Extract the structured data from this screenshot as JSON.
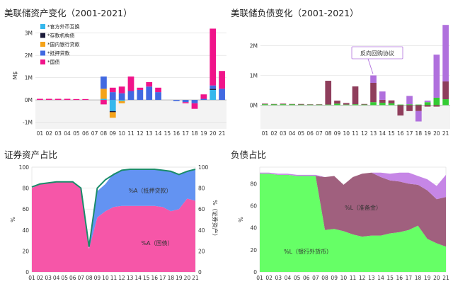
{
  "chart_data": [
    {
      "type": "bar",
      "stacked": true,
      "title": "美联储资产变化（2001-2021）",
      "ylabel": "M$",
      "ylim": [
        -1.3,
        3.5
      ],
      "yticks": [
        "3M",
        "2M",
        "1M",
        "0M",
        "-1M"
      ],
      "ytick_values": [
        3,
        2,
        1,
        0,
        -1
      ],
      "categories": [
        "01",
        "02",
        "03",
        "04",
        "05",
        "06",
        "07",
        "08",
        "09",
        "10",
        "11",
        "12",
        "13",
        "14",
        "15",
        "16",
        "17",
        "18",
        "19",
        "20",
        "21"
      ],
      "legend_position": "top-left",
      "series": [
        {
          "name": "*官方外币互换",
          "color": "#35b7ec",
          "values": [
            0,
            0,
            0,
            0,
            0,
            0,
            0,
            0.05,
            -0.5,
            -0.05,
            0,
            0,
            0,
            0,
            0,
            0,
            0,
            0,
            0,
            0.45,
            0
          ]
        },
        {
          "name": "*存款机构债",
          "color": "#1b1b3a",
          "values": [
            0,
            0,
            0,
            0,
            0,
            0,
            0,
            0,
            -0.05,
            0,
            0,
            0,
            0,
            0,
            0,
            0,
            0,
            0,
            0,
            0.05,
            0
          ]
        },
        {
          "name": "*国内银行贷款",
          "color": "#f5a31a",
          "values": [
            0,
            0,
            0,
            0,
            0,
            0,
            0,
            0.45,
            -0.25,
            -0.1,
            0,
            0,
            0,
            0,
            0,
            0,
            0,
            0,
            0,
            0,
            0
          ]
        },
        {
          "name": "*抵押贷款",
          "color": "#4169e1",
          "values": [
            0,
            0,
            0,
            0,
            0,
            0,
            0,
            0.55,
            0.35,
            0.3,
            0.4,
            0.45,
            0.6,
            0.35,
            0,
            -0.05,
            -0.1,
            -0.15,
            0.05,
            0.15,
            0.5
          ]
        },
        {
          "name": "*国债",
          "color": "#f0148a",
          "values": [
            0.05,
            0.05,
            0.05,
            0.05,
            0.04,
            0.04,
            0,
            -0.2,
            0.2,
            0.3,
            0.65,
            0.1,
            0.2,
            0.2,
            0,
            0,
            -0.05,
            -0.25,
            0.2,
            2.55,
            0.8
          ]
        }
      ]
    },
    {
      "type": "bar",
      "stacked": true,
      "title": "美联储负债变化（2001-2021）",
      "ylim": [
        -0.8,
        2.8
      ],
      "yticks": [
        "2M",
        "1M",
        "0M"
      ],
      "ytick_values": [
        2,
        1,
        0
      ],
      "categories": [
        "01",
        "02",
        "03",
        "04",
        "05",
        "06",
        "07",
        "08",
        "09",
        "10",
        "11",
        "12",
        "13",
        "14",
        "15",
        "16",
        "17",
        "18",
        "19",
        "20",
        "21"
      ],
      "annotation": "反向回购协议",
      "series": [
        {
          "name": "green",
          "color": "#33cc33",
          "values": [
            0.03,
            0.03,
            0.03,
            0.03,
            0.02,
            0.02,
            0.02,
            0.02,
            0.05,
            0.02,
            0.03,
            0.02,
            0.1,
            0.08,
            0.06,
            0.02,
            0.03,
            0.02,
            0.1,
            0.25,
            0.2
          ]
        },
        {
          "name": "maroon",
          "color": "#8f3e5c",
          "values": [
            0.02,
            0.01,
            0.02,
            0.01,
            0.02,
            0.01,
            0.01,
            0.8,
            0.1,
            0.05,
            0.6,
            0.02,
            0.65,
            0.1,
            0.1,
            -0.35,
            -0.2,
            -0.2,
            -0.05,
            -0.05,
            0.6
          ]
        },
        {
          "name": "purple",
          "color": "#b070dd",
          "values": [
            0,
            0,
            0,
            0,
            0,
            0,
            0,
            0,
            0,
            0,
            0,
            0,
            0.25,
            0.28,
            0,
            0,
            0.28,
            -0.35,
            0.05,
            1.45,
            1.9
          ]
        }
      ]
    },
    {
      "type": "area",
      "stacked": true,
      "title": "证券资产占比",
      "ylabel": "%",
      "ylabel_right": "%（证券资产）",
      "ylim": [
        0,
        100
      ],
      "yticks": [
        "100",
        "80",
        "60",
        "40",
        "20",
        "0"
      ],
      "ytick_values": [
        100,
        80,
        60,
        40,
        20,
        0
      ],
      "x": [
        "01",
        "02",
        "03",
        "04",
        "05",
        "06",
        "07",
        "08",
        "09",
        "10",
        "11",
        "12",
        "13",
        "14",
        "15",
        "16",
        "17",
        "18",
        "19",
        "20",
        "21"
      ],
      "series": [
        {
          "name": "%A（国债）",
          "color": "#f656a8",
          "values": [
            80,
            84,
            85,
            86,
            86,
            86,
            79,
            22,
            52,
            58,
            62,
            63,
            63,
            63,
            63,
            63,
            62,
            58,
            60,
            70,
            68
          ]
        },
        {
          "name": "%A（抵押贷款）",
          "color": "#6393f2",
          "values": [
            0,
            0,
            0,
            0,
            0,
            0,
            0,
            0,
            25,
            26,
            32,
            34,
            35,
            35,
            35,
            35,
            35,
            38,
            33,
            26,
            30
          ]
        }
      ],
      "line": {
        "name": "证券资产",
        "color": "#1a8c6a",
        "values": [
          81,
          84,
          85,
          86,
          86,
          86,
          80,
          24,
          80,
          88,
          93,
          97,
          98,
          98,
          98,
          98,
          97,
          96,
          93,
          96,
          98
        ]
      }
    },
    {
      "type": "area",
      "title": "负债占比",
      "ylabel": "%",
      "ylim": [
        0,
        95
      ],
      "yticks": [
        "80",
        "60",
        "40",
        "20",
        "0"
      ],
      "ytick_values": [
        80,
        60,
        40,
        20,
        0
      ],
      "x": [
        "01",
        "02",
        "03",
        "04",
        "05",
        "06",
        "07",
        "08",
        "09",
        "10",
        "11",
        "12",
        "13",
        "14",
        "15",
        "16",
        "17",
        "18",
        "19",
        "20",
        "21"
      ],
      "series": [
        {
          "name": "%L（银行外货币）",
          "color": "#66ff66",
          "values": [
            89,
            89,
            88,
            88,
            87,
            87,
            87,
            38,
            39,
            37,
            34,
            32,
            33,
            33,
            35,
            36,
            38,
            42,
            30,
            26,
            23
          ]
        },
        {
          "name": "%L（准备金）",
          "color": "#a0607e",
          "values": [
            0,
            0,
            0,
            0,
            0,
            0,
            0,
            48,
            48,
            42,
            52,
            57,
            57,
            53,
            48,
            46,
            42,
            37,
            44,
            40,
            45
          ]
        },
        {
          "name": "purple",
          "color": "#c686e6",
          "values": [
            1,
            1,
            1,
            1,
            1,
            1,
            1,
            0,
            0,
            0,
            0,
            0,
            0,
            4,
            6,
            8,
            10,
            8,
            10,
            12,
            20
          ]
        }
      ]
    }
  ]
}
